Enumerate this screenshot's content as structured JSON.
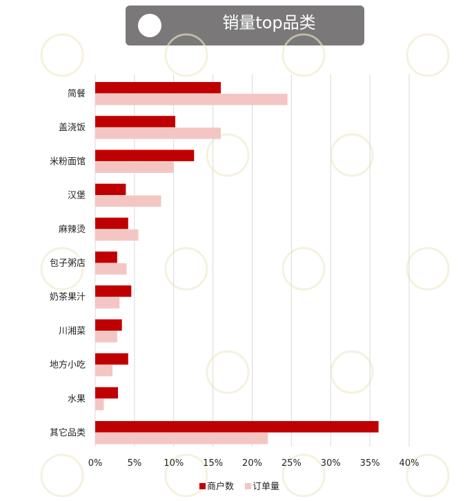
{
  "title": "销量top品类",
  "colors": {
    "title_bg": "#7a7878",
    "series_merchants": "#c00000",
    "series_orders": "#f4c6c3",
    "grid": "#d9d9d9",
    "watermark": "#efe7c8"
  },
  "chart_data": {
    "type": "bar",
    "orientation": "horizontal",
    "title": "销量top品类",
    "categories": [
      "简餐",
      "盖浇饭",
      "米粉面馆",
      "汉堡",
      "麻辣烫",
      "包子粥店",
      "奶茶果汁",
      "川湘菜",
      "地方小吃",
      "水果",
      "其它品类"
    ],
    "series": [
      {
        "name": "商户数",
        "color": "#c00000",
        "values": [
          16.0,
          10.2,
          12.6,
          3.9,
          4.2,
          2.8,
          4.6,
          3.4,
          4.2,
          2.9,
          36.1
        ]
      },
      {
        "name": "订单量",
        "color": "#f4c6c3",
        "values": [
          24.5,
          16.0,
          10.0,
          8.4,
          5.5,
          4.0,
          3.1,
          2.8,
          2.2,
          1.1,
          22.0
        ]
      }
    ],
    "xlim": [
      0,
      40
    ],
    "xticks": [
      "0%",
      "5%",
      "10%",
      "15%",
      "20%",
      "25%",
      "30%",
      "35%",
      "40%"
    ],
    "xtick_values": [
      0,
      5,
      10,
      15,
      20,
      25,
      30,
      35,
      40
    ],
    "xlabel": "",
    "ylabel": "",
    "grid": true,
    "legend_position": "bottom"
  }
}
